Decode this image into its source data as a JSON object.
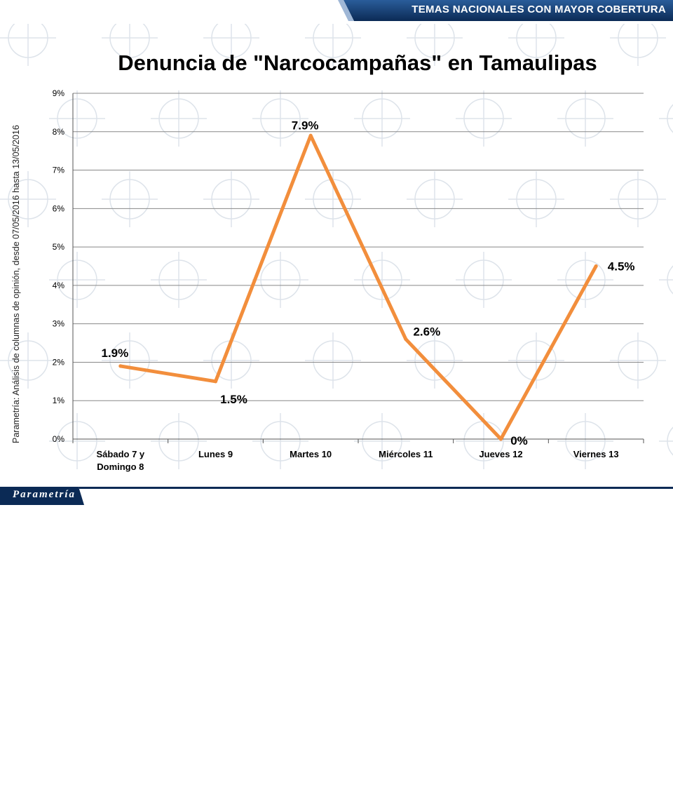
{
  "header": {
    "section_tag": "TEMAS NACIONALES CON MAYOR COBERTURA"
  },
  "side_note": "Parametría: Análisis de columnas de opinión, desde 07/05/2016 hasta  13/05/2016",
  "footer": {
    "logo_text": "Parametría"
  },
  "colors": {
    "line": "#f28e3c",
    "bar_dark": "#0b2a55",
    "bar_mid": "#1f4f8a",
    "grid": "#888888"
  },
  "chart_data": {
    "type": "line",
    "title": "Denuncia de \"Narcocampañas\"  en Tamaulipas",
    "categories": [
      [
        "Sábado 7 y",
        "Domingo 8"
      ],
      [
        "Lunes 9"
      ],
      [
        "Martes 10"
      ],
      [
        "Miércoles 11"
      ],
      [
        "Jueves 12"
      ],
      [
        "Viernes 13"
      ]
    ],
    "values": [
      1.9,
      1.5,
      7.9,
      2.6,
      0,
      4.5
    ],
    "data_labels": [
      "1.9%",
      "1.5%",
      "7.9%",
      "2.6%",
      "0%",
      "4.5%"
    ],
    "y_ticks": [
      "0%",
      "1%",
      "2%",
      "3%",
      "4%",
      "5%",
      "6%",
      "7%",
      "8%",
      "9%"
    ],
    "ylim": [
      0,
      9
    ],
    "grid": true,
    "legend": "none"
  }
}
